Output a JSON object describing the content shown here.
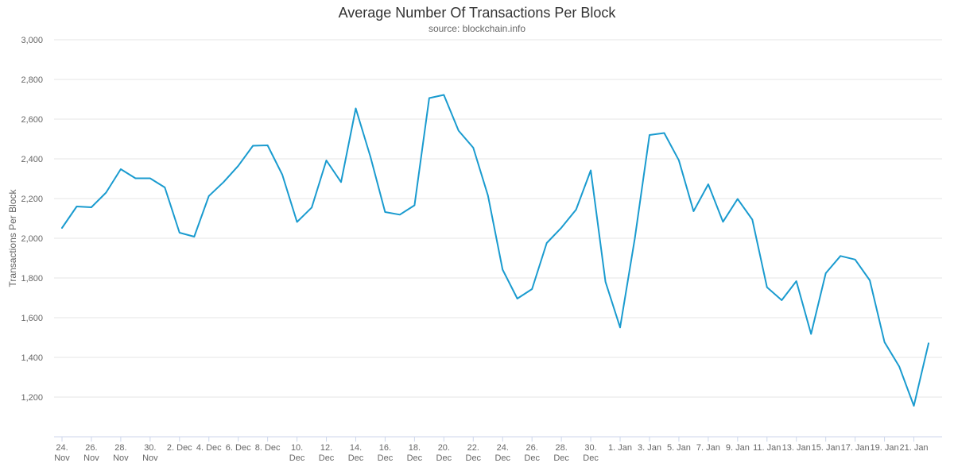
{
  "title": "Average Number Of Transactions Per Block",
  "subtitle": "source: blockchain.info",
  "colors": {
    "series": "#1a9bcf",
    "grid": "#e6e6e6",
    "axis": "#ccd6eb",
    "text": "#666666"
  },
  "chart_data": {
    "type": "line",
    "title": "Average Number Of Transactions Per Block",
    "subtitle": "source: blockchain.info",
    "xlabel": "",
    "ylabel": "Transactions Per Block",
    "ylim": [
      1000,
      3000
    ],
    "yticks": [
      1200,
      1400,
      1600,
      1800,
      2000,
      2200,
      2400,
      2600,
      2800,
      3000
    ],
    "ytick_labels": [
      "1,200",
      "1,400",
      "1,600",
      "1,800",
      "2,000",
      "2,200",
      "2,400",
      "2,600",
      "2,800",
      "3,000"
    ],
    "grid": true,
    "legend": "none",
    "x_tick_labels": [
      [
        "24.",
        "Nov"
      ],
      [
        "26.",
        "Nov"
      ],
      [
        "28.",
        "Nov"
      ],
      [
        "30.",
        "Nov"
      ],
      [
        "2. Dec"
      ],
      [
        "4. Dec"
      ],
      [
        "6. Dec"
      ],
      [
        "8. Dec"
      ],
      [
        "10.",
        "Dec"
      ],
      [
        "12.",
        "Dec"
      ],
      [
        "14.",
        "Dec"
      ],
      [
        "16.",
        "Dec"
      ],
      [
        "18.",
        "Dec"
      ],
      [
        "20.",
        "Dec"
      ],
      [
        "22.",
        "Dec"
      ],
      [
        "24.",
        "Dec"
      ],
      [
        "26.",
        "Dec"
      ],
      [
        "28.",
        "Dec"
      ],
      [
        "30.",
        "Dec"
      ],
      [
        "1. Jan"
      ],
      [
        "3. Jan"
      ],
      [
        "5. Jan"
      ],
      [
        "7. Jan"
      ],
      [
        "9. Jan"
      ],
      [
        "11. Jan"
      ],
      [
        "13. Jan"
      ],
      [
        "15. Jan"
      ],
      [
        "17. Jan"
      ],
      [
        "19. Jan"
      ],
      [
        "21. Jan"
      ]
    ],
    "series": [
      {
        "x": [
          "Nov 24",
          "Nov 25",
          "Nov 26",
          "Nov 27",
          "Nov 28",
          "Nov 29",
          "Nov 30",
          "Dec 1",
          "Dec 2",
          "Dec 3",
          "Dec 4",
          "Dec 5",
          "Dec 6",
          "Dec 7",
          "Dec 8",
          "Dec 9",
          "Dec 10",
          "Dec 11",
          "Dec 12",
          "Dec 13",
          "Dec 14",
          "Dec 15",
          "Dec 16",
          "Dec 17",
          "Dec 18",
          "Dec 19",
          "Dec 20",
          "Dec 21",
          "Dec 22",
          "Dec 23",
          "Dec 24",
          "Dec 25",
          "Dec 26",
          "Dec 27",
          "Dec 28",
          "Dec 29",
          "Dec 30",
          "Dec 31",
          "Jan 1",
          "Jan 2",
          "Jan 3",
          "Jan 4",
          "Jan 5",
          "Jan 6",
          "Jan 7",
          "Jan 8",
          "Jan 9",
          "Jan 10",
          "Jan 11",
          "Jan 12",
          "Jan 13",
          "Jan 14",
          "Jan 15",
          "Jan 16",
          "Jan 17",
          "Jan 18",
          "Jan 19",
          "Jan 20",
          "Jan 21",
          "Jan 22"
        ],
        "values": [
          2052,
          2160,
          2156,
          2230,
          2348,
          2302,
          2302,
          2256,
          2028,
          2008,
          2213,
          2283,
          2365,
          2466,
          2468,
          2320,
          2082,
          2155,
          2392,
          2283,
          2654,
          2410,
          2132,
          2119,
          2166,
          2706,
          2722,
          2542,
          2456,
          2215,
          1842,
          1696,
          1744,
          1976,
          2053,
          2144,
          2342,
          1781,
          1551,
          1999,
          2520,
          2530,
          2393,
          2136,
          2272,
          2083,
          2198,
          2094,
          1753,
          1688,
          1784,
          1518,
          1824,
          1911,
          1893,
          1788,
          1477,
          1354,
          1156,
          1471
        ]
      }
    ]
  }
}
